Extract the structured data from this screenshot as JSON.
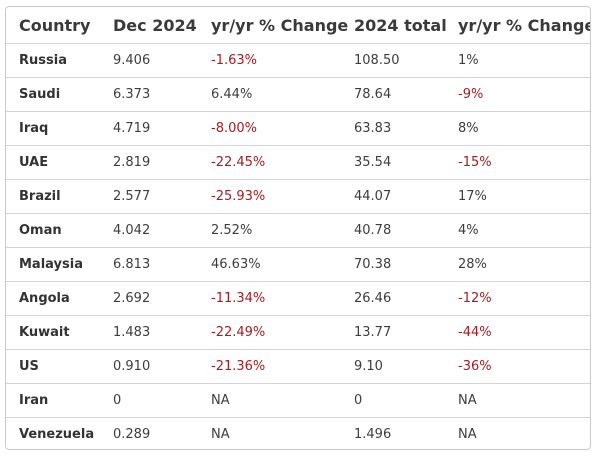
{
  "table": {
    "headers": [
      "Country",
      "Dec 2024",
      "yr/yr % Change",
      "2024 total",
      "yr/yr % Change"
    ],
    "rows": [
      [
        "Russia",
        "9.406",
        "-1.63%",
        "108.50",
        "1%"
      ],
      [
        "Saudi",
        "6.373",
        "6.44%",
        "78.64",
        "-9%"
      ],
      [
        "Iraq",
        "4.719",
        "-8.00%",
        "63.83",
        "8%"
      ],
      [
        "UAE",
        "2.819",
        "-22.45%",
        "35.54",
        "-15%"
      ],
      [
        "Brazil",
        "2.577",
        "-25.93%",
        "44.07",
        "17%"
      ],
      [
        "Oman",
        "4.042",
        "2.52%",
        "40.78",
        "4%"
      ],
      [
        "Malaysia",
        "6.813",
        "46.63%",
        "70.38",
        "28%"
      ],
      [
        "Angola",
        "2.692",
        "-11.34%",
        "26.46",
        "-12%"
      ],
      [
        "Kuwait",
        "1.483",
        "-22.49%",
        "13.77",
        "-44%"
      ],
      [
        "US",
        "0.910",
        "-21.36%",
        "9.10",
        "-36%"
      ],
      [
        "Iran",
        "0",
        "NA",
        "0",
        "NA"
      ],
      [
        "Venezuela",
        "0.289",
        "NA",
        "1.496",
        "NA"
      ]
    ]
  },
  "colors": {
    "negative": "#a11f24",
    "text": "#3d3d3d",
    "border": "#d4d4d4"
  }
}
